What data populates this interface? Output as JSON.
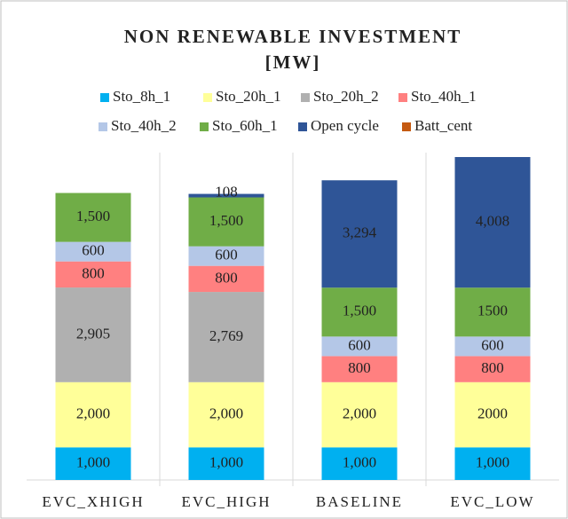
{
  "chart_data": {
    "type": "stacked_bar",
    "title": "NON RENEWABLE  INVESTMENT",
    "subtitle": "[MW]",
    "categories": [
      "EVC_XHIGH",
      "EVC_HIGH",
      "BASELINE",
      "EVC_LOW"
    ],
    "series": [
      {
        "name": "Sto_8h_1",
        "color": "#00b0f0",
        "values": [
          1000,
          1000,
          1000,
          1000
        ],
        "value_labels": [
          "1,000",
          "1,000",
          "1,000",
          "1,000"
        ]
      },
      {
        "name": "Sto_20h_1",
        "color": "#ffff99",
        "values": [
          2000,
          2000,
          2000,
          2000
        ],
        "value_labels": [
          "2,000",
          "2,000",
          "2,000",
          "2000"
        ]
      },
      {
        "name": "Sto_20h_2",
        "color": "#b0b0b0",
        "values": [
          2905,
          2769,
          null,
          null
        ],
        "value_labels": [
          "2,905",
          "2,769",
          null,
          null
        ]
      },
      {
        "name": "Sto_40h_1",
        "color": "#ff8080",
        "values": [
          800,
          800,
          800,
          800
        ]
      },
      {
        "name": "Sto_40h_2",
        "color": "#b4c7e7",
        "values": [
          600,
          600,
          600,
          600
        ]
      },
      {
        "name": "Sto_60h_1",
        "color": "#70ad47",
        "values": [
          1500,
          1500,
          1500,
          1500
        ],
        "value_labels": [
          "1,500",
          "1,500",
          "1,500",
          "1500"
        ]
      },
      {
        "name": "Open cycle",
        "color": "#2f5597",
        "values": [
          null,
          108,
          3294,
          4008
        ],
        "value_labels": [
          null,
          "108",
          "3,294",
          "4,008"
        ]
      },
      {
        "name": "Batt_cent",
        "color": "#c55a11",
        "values": [
          null,
          null,
          null,
          null
        ]
      }
    ]
  }
}
